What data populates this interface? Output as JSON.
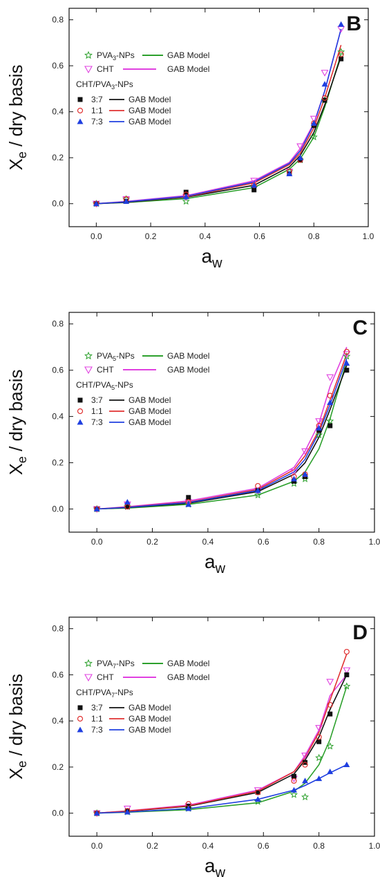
{
  "chart_data": [
    {
      "type": "scatter",
      "panel_label": "B",
      "xlabel_main": "a",
      "xlabel_sub": "w",
      "ylabel_main": "X",
      "ylabel_sub": "e",
      "ylabel_rest": " / dry basis",
      "xlim": [
        -0.1,
        1.0
      ],
      "ylim": [
        -0.1,
        0.85
      ],
      "xticks": [
        "0.0",
        "0.2",
        "0.4",
        "0.6",
        "0.8",
        "1.0"
      ],
      "yticks": [
        "0.0",
        "0.2",
        "0.4",
        "0.6",
        "0.8"
      ],
      "legend": {
        "pva_label": "PVA",
        "pva_sub": "3",
        "pva_suffix": "-NPs",
        "cht_label": "CHT",
        "model_label": "GAB Model",
        "group_title": "CHT/PVA",
        "group_sub": "3",
        "group_suffix": "-NPs",
        "ratios": [
          "3:7",
          "1:1",
          "7:3"
        ]
      },
      "series": [
        {
          "name": "PVA3-NPs",
          "marker": "star",
          "color": "#2ca02c",
          "x": [
            0.0,
            0.11,
            0.33,
            0.58,
            0.71,
            0.75,
            0.8,
            0.84,
            0.9
          ],
          "y": [
            0.0,
            0.02,
            0.01,
            0.07,
            0.14,
            0.19,
            0.29,
            0.45,
            0.66
          ]
        },
        {
          "name": "CHT",
          "marker": "triangle-down",
          "color": "#e040e0",
          "x": [
            0.0,
            0.11,
            0.33,
            0.58,
            0.71,
            0.75,
            0.8,
            0.84,
            0.9
          ],
          "y": [
            0.0,
            0.02,
            0.03,
            0.1,
            0.14,
            0.25,
            0.37,
            0.57,
            0.76
          ]
        },
        {
          "name": "3:7",
          "marker": "square",
          "color": "#111111",
          "x": [
            0.0,
            0.11,
            0.33,
            0.58,
            0.71,
            0.75,
            0.8,
            0.84,
            0.9
          ],
          "y": [
            0.0,
            0.01,
            0.05,
            0.06,
            0.13,
            0.19,
            0.34,
            0.45,
            0.63
          ]
        },
        {
          "name": "1:1",
          "marker": "circle-open",
          "color": "#e03030",
          "x": [
            0.0,
            0.11,
            0.33,
            0.58,
            0.71,
            0.75,
            0.8,
            0.84,
            0.9
          ],
          "y": [
            0.0,
            0.02,
            0.04,
            0.08,
            0.14,
            0.19,
            0.35,
            0.46,
            0.65
          ]
        },
        {
          "name": "7:3",
          "marker": "triangle-up",
          "color": "#1f3fe0",
          "x": [
            0.0,
            0.11,
            0.33,
            0.58,
            0.71,
            0.75,
            0.8,
            0.84,
            0.9
          ],
          "y": [
            0.0,
            0.01,
            0.03,
            0.08,
            0.13,
            0.2,
            0.35,
            0.52,
            0.78
          ]
        }
      ],
      "models": [
        {
          "name": "PVA3-NPs GAB",
          "color": "#2ca02c",
          "x": [
            0.0,
            0.11,
            0.33,
            0.58,
            0.71,
            0.75,
            0.8,
            0.84,
            0.9
          ],
          "y": [
            0.0,
            0.005,
            0.022,
            0.07,
            0.15,
            0.195,
            0.29,
            0.42,
            0.65
          ]
        },
        {
          "name": "CHT GAB",
          "color": "#e040e0",
          "x": [
            0.0,
            0.11,
            0.33,
            0.58,
            0.71,
            0.75,
            0.8,
            0.84,
            0.9
          ],
          "y": [
            0.0,
            0.01,
            0.035,
            0.1,
            0.18,
            0.24,
            0.35,
            0.49,
            0.76
          ]
        },
        {
          "name": "3:7 GAB",
          "color": "#111111",
          "x": [
            0.0,
            0.11,
            0.33,
            0.58,
            0.71,
            0.75,
            0.8,
            0.84,
            0.9
          ],
          "y": [
            0.0,
            0.006,
            0.028,
            0.08,
            0.16,
            0.21,
            0.31,
            0.43,
            0.64
          ]
        },
        {
          "name": "1:1 GAB",
          "color": "#e03030",
          "x": [
            0.0,
            0.11,
            0.33,
            0.58,
            0.71,
            0.75,
            0.8,
            0.84,
            0.9
          ],
          "y": [
            0.0,
            0.008,
            0.03,
            0.09,
            0.17,
            0.22,
            0.33,
            0.46,
            0.69
          ]
        },
        {
          "name": "7:3 GAB",
          "color": "#1f3fe0",
          "x": [
            0.0,
            0.11,
            0.33,
            0.58,
            0.71,
            0.75,
            0.8,
            0.84,
            0.9
          ],
          "y": [
            0.0,
            0.008,
            0.032,
            0.095,
            0.175,
            0.23,
            0.345,
            0.49,
            0.76
          ]
        }
      ]
    },
    {
      "type": "scatter",
      "panel_label": "C",
      "xlabel_main": "a",
      "xlabel_sub": "w",
      "ylabel_main": "X",
      "ylabel_sub": "e",
      "ylabel_rest": " / dry basis",
      "xlim": [
        -0.1,
        1.0
      ],
      "ylim": [
        -0.1,
        0.85
      ],
      "xticks": [
        "0.0",
        "0.2",
        "0.4",
        "0.6",
        "0.8",
        "1.0"
      ],
      "yticks": [
        "0.0",
        "0.2",
        "0.4",
        "0.6",
        "0.8"
      ],
      "legend": {
        "pva_label": "PVA",
        "pva_sub": "5",
        "pva_suffix": "-NPs",
        "cht_label": "CHT",
        "model_label": "GAB Model",
        "group_title": "CHT/PVA",
        "group_sub": "5",
        "group_suffix": "-NPs",
        "ratios": [
          "3:7",
          "1:1",
          "7:3"
        ]
      },
      "series": [
        {
          "name": "PVA5-NPs",
          "marker": "star",
          "color": "#2ca02c",
          "x": [
            0.0,
            0.11,
            0.33,
            0.58,
            0.71,
            0.75,
            0.8,
            0.84,
            0.9
          ],
          "y": [
            0.0,
            0.01,
            0.02,
            0.06,
            0.11,
            0.13,
            0.32,
            0.38,
            0.66
          ]
        },
        {
          "name": "CHT",
          "marker": "triangle-down",
          "color": "#e040e0",
          "x": [
            0.0,
            0.11,
            0.33,
            0.58,
            0.71,
            0.75,
            0.8,
            0.84,
            0.9
          ],
          "y": [
            0.0,
            0.02,
            0.03,
            0.08,
            0.16,
            0.25,
            0.38,
            0.57,
            0.67
          ]
        },
        {
          "name": "3:7",
          "marker": "square",
          "color": "#111111",
          "x": [
            0.0,
            0.11,
            0.33,
            0.58,
            0.71,
            0.75,
            0.8,
            0.84,
            0.9
          ],
          "y": [
            0.0,
            0.01,
            0.05,
            0.08,
            0.12,
            0.14,
            0.34,
            0.36,
            0.6
          ]
        },
        {
          "name": "1:1",
          "marker": "circle-open",
          "color": "#e03030",
          "x": [
            0.0,
            0.11,
            0.33,
            0.58,
            0.71,
            0.75,
            0.8,
            0.84,
            0.9
          ],
          "y": [
            0.0,
            0.01,
            0.03,
            0.1,
            0.14,
            0.15,
            0.36,
            0.49,
            0.68
          ]
        },
        {
          "name": "7:3",
          "marker": "triangle-up",
          "color": "#1f3fe0",
          "x": [
            0.0,
            0.11,
            0.33,
            0.58,
            0.71,
            0.75,
            0.8,
            0.84,
            0.9
          ],
          "y": [
            0.0,
            0.03,
            0.02,
            0.08,
            0.13,
            0.15,
            0.35,
            0.46,
            0.63
          ]
        }
      ],
      "models": [
        {
          "name": "PVA5-NPs GAB",
          "color": "#2ca02c",
          "x": [
            0.0,
            0.11,
            0.33,
            0.58,
            0.71,
            0.75,
            0.8,
            0.84,
            0.9
          ],
          "y": [
            0.0,
            0.004,
            0.02,
            0.06,
            0.12,
            0.16,
            0.26,
            0.39,
            0.64
          ]
        },
        {
          "name": "CHT GAB",
          "color": "#e040e0",
          "x": [
            0.0,
            0.11,
            0.33,
            0.58,
            0.71,
            0.75,
            0.8,
            0.84,
            0.9
          ],
          "y": [
            0.0,
            0.01,
            0.035,
            0.09,
            0.18,
            0.25,
            0.37,
            0.53,
            0.7
          ]
        },
        {
          "name": "3:7 GAB",
          "color": "#111111",
          "x": [
            0.0,
            0.11,
            0.33,
            0.58,
            0.71,
            0.75,
            0.8,
            0.84,
            0.9
          ],
          "y": [
            0.0,
            0.006,
            0.025,
            0.075,
            0.15,
            0.2,
            0.31,
            0.43,
            0.62
          ]
        },
        {
          "name": "1:1 GAB",
          "color": "#e03030",
          "x": [
            0.0,
            0.11,
            0.33,
            0.58,
            0.71,
            0.75,
            0.8,
            0.84,
            0.9
          ],
          "y": [
            0.0,
            0.008,
            0.03,
            0.085,
            0.17,
            0.23,
            0.34,
            0.47,
            0.67
          ]
        },
        {
          "name": "7:3 GAB",
          "color": "#1f3fe0",
          "x": [
            0.0,
            0.11,
            0.33,
            0.58,
            0.71,
            0.75,
            0.8,
            0.84,
            0.9
          ],
          "y": [
            0.0,
            0.007,
            0.028,
            0.08,
            0.16,
            0.215,
            0.33,
            0.45,
            0.65
          ]
        }
      ]
    },
    {
      "type": "scatter",
      "panel_label": "D",
      "xlabel_main": "a",
      "xlabel_sub": "w",
      "ylabel_main": "X",
      "ylabel_sub": "e",
      "ylabel_rest": " / dry basis",
      "xlim": [
        -0.1,
        1.0
      ],
      "ylim": [
        -0.1,
        0.85
      ],
      "xticks": [
        "0.0",
        "0.2",
        "0.4",
        "0.6",
        "0.8",
        "1.0"
      ],
      "yticks": [
        "0.0",
        "0.2",
        "0.4",
        "0.6",
        "0.8"
      ],
      "legend": {
        "pva_label": "PVA",
        "pva_sub": "7",
        "pva_suffix": "-NPs",
        "cht_label": "CHT",
        "model_label": "GAB Model",
        "group_title": "CHT/PVA",
        "group_sub": "7",
        "group_suffix": "-NPs",
        "ratios": [
          "3:7",
          "1:1",
          "7:3"
        ]
      },
      "series": [
        {
          "name": "PVA7-NPs",
          "marker": "star",
          "color": "#2ca02c",
          "x": [
            0.0,
            0.11,
            0.33,
            0.58,
            0.71,
            0.75,
            0.8,
            0.84,
            0.9
          ],
          "y": [
            0.0,
            0.005,
            0.02,
            0.05,
            0.08,
            0.07,
            0.24,
            0.29,
            0.55
          ]
        },
        {
          "name": "CHT",
          "marker": "triangle-down",
          "color": "#e040e0",
          "x": [
            0.0,
            0.11,
            0.33,
            0.58,
            0.71,
            0.75,
            0.8,
            0.84,
            0.9
          ],
          "y": [
            0.0,
            0.02,
            0.03,
            0.1,
            0.15,
            0.25,
            0.37,
            0.57,
            0.62
          ]
        },
        {
          "name": "3:7",
          "marker": "square",
          "color": "#111111",
          "x": [
            0.0,
            0.11,
            0.33,
            0.58,
            0.71,
            0.75,
            0.8,
            0.84,
            0.9
          ],
          "y": [
            0.0,
            0.01,
            0.03,
            0.09,
            0.16,
            0.22,
            0.31,
            0.43,
            0.6
          ]
        },
        {
          "name": "1:1",
          "marker": "circle-open",
          "color": "#e03030",
          "x": [
            0.0,
            0.11,
            0.33,
            0.58,
            0.71,
            0.75,
            0.8,
            0.84,
            0.9
          ],
          "y": [
            0.0,
            0.01,
            0.04,
            0.09,
            0.14,
            0.21,
            0.33,
            0.47,
            0.7
          ]
        },
        {
          "name": "7:3",
          "marker": "triangle-up",
          "color": "#1f3fe0",
          "x": [
            0.0,
            0.11,
            0.33,
            0.58,
            0.71,
            0.75,
            0.8,
            0.84,
            0.9
          ],
          "y": [
            0.0,
            0.005,
            0.02,
            0.06,
            0.1,
            0.14,
            0.15,
            0.18,
            0.21
          ]
        }
      ],
      "models": [
        {
          "name": "PVA7-NPs GAB",
          "color": "#2ca02c",
          "x": [
            0.0,
            0.11,
            0.33,
            0.58,
            0.71,
            0.75,
            0.8,
            0.84,
            0.9
          ],
          "y": [
            0.0,
            0.004,
            0.015,
            0.045,
            0.095,
            0.13,
            0.21,
            0.32,
            0.55
          ]
        },
        {
          "name": "CHT GAB",
          "color": "#e040e0",
          "x": [
            0.0,
            0.11,
            0.33,
            0.58,
            0.71,
            0.75,
            0.8,
            0.84,
            0.9
          ],
          "y": [
            0.0,
            0.01,
            0.035,
            0.1,
            0.18,
            0.25,
            0.36,
            0.51,
            0.6
          ]
        },
        {
          "name": "3:7 GAB",
          "color": "#111111",
          "x": [
            0.0,
            0.11,
            0.33,
            0.58,
            0.71,
            0.75,
            0.8,
            0.84,
            0.9
          ],
          "y": [
            0.0,
            0.008,
            0.03,
            0.09,
            0.17,
            0.23,
            0.33,
            0.45,
            0.6
          ]
        },
        {
          "name": "1:1 GAB",
          "color": "#e03030",
          "x": [
            0.0,
            0.11,
            0.33,
            0.58,
            0.71,
            0.75,
            0.8,
            0.84,
            0.9
          ],
          "y": [
            0.0,
            0.009,
            0.032,
            0.095,
            0.18,
            0.24,
            0.35,
            0.49,
            0.69
          ]
        },
        {
          "name": "7:3 GAB",
          "color": "#1f3fe0",
          "x": [
            0.0,
            0.11,
            0.33,
            0.58,
            0.71,
            0.75,
            0.8,
            0.84,
            0.9
          ],
          "y": [
            0.0,
            0.005,
            0.02,
            0.06,
            0.1,
            0.12,
            0.15,
            0.175,
            0.21
          ]
        }
      ]
    }
  ]
}
